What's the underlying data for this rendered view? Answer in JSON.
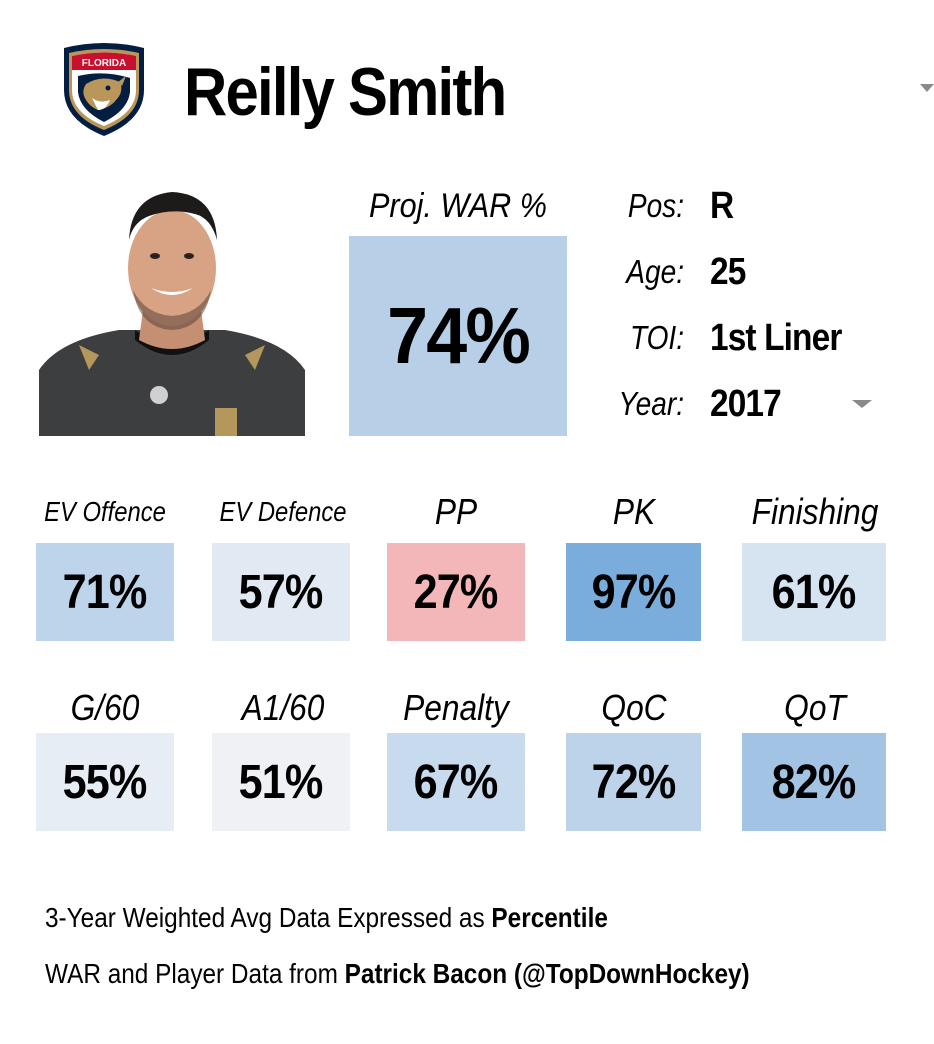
{
  "team": {
    "logo_text": "FLORIDA",
    "logo_icon": "florida-panthers-logo-icon",
    "colors": {
      "red": "#c8102e",
      "navy": "#041e42",
      "gold": "#b9975b"
    }
  },
  "player": {
    "name": "Reilly Smith"
  },
  "projection": {
    "label": "Proj. WAR %",
    "value": "74%",
    "color": "#b7d0e8"
  },
  "info": {
    "pos": {
      "label": "Pos:",
      "value": "R"
    },
    "age": {
      "label": "Age:",
      "value": "25"
    },
    "toi": {
      "label": "TOI:",
      "value": "1st Liner"
    },
    "year": {
      "label": "Year:",
      "value": "2017"
    }
  },
  "stats_row1": [
    {
      "label": "EV Offence",
      "value": "71%",
      "color": "#bdd4ea"
    },
    {
      "label": "EV Defence",
      "value": "57%",
      "color": "#e1e9f3"
    },
    {
      "label": "PP",
      "value": "27%",
      "color": "#f3b7ba"
    },
    {
      "label": "PK",
      "value": "97%",
      "color": "#7aaddc"
    },
    {
      "label": "Finishing",
      "value": "61%",
      "color": "#d6e3f1"
    }
  ],
  "stats_row2": [
    {
      "label": "G/60",
      "value": "55%",
      "color": "#e7edf5"
    },
    {
      "label": "A1/60",
      "value": "51%",
      "color": "#eff1f4"
    },
    {
      "label": "Penalty",
      "value": "67%",
      "color": "#c8daed"
    },
    {
      "label": "QoC",
      "value": "72%",
      "color": "#bcd3ea"
    },
    {
      "label": "QoT",
      "value": "82%",
      "color": "#a3c3e4"
    }
  ],
  "footer": {
    "line1_text": "3-Year Weighted Avg Data Expressed as ",
    "line1_bold": "Percentile",
    "line2_text": "WAR and Player Data from ",
    "line2_bold": "Patrick Bacon (@TopDownHockey)"
  }
}
